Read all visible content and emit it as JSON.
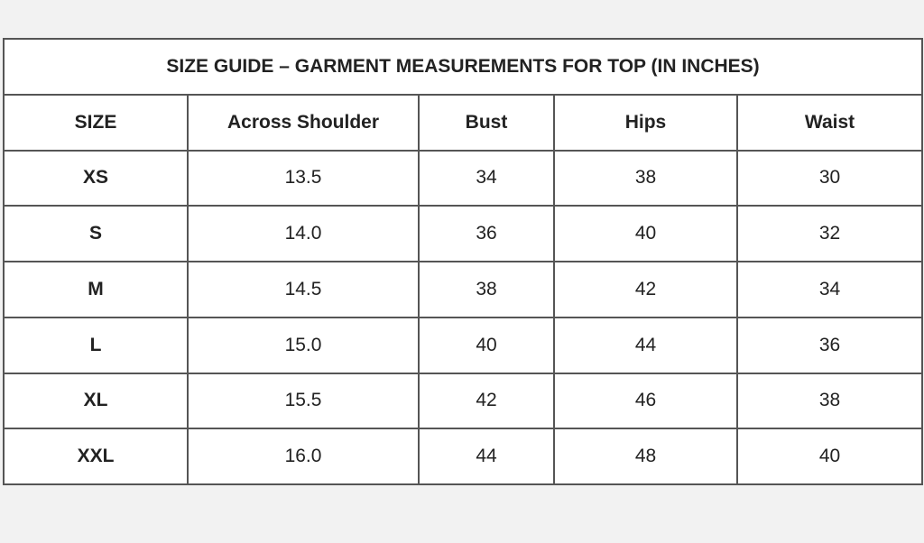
{
  "title": "SIZE GUIDE – GARMENT MEASUREMENTS FOR TOP (IN INCHES)",
  "columns": [
    "SIZE",
    "Across Shoulder",
    "Bust",
    "Hips",
    "Waist"
  ],
  "rows": [
    [
      "XS",
      "13.5",
      "34",
      "38",
      "30"
    ],
    [
      "S",
      "14.0",
      "36",
      "40",
      "32"
    ],
    [
      "M",
      "14.5",
      "38",
      "42",
      "34"
    ],
    [
      "L",
      "15.0",
      "40",
      "44",
      "36"
    ],
    [
      "XL",
      "15.5",
      "42",
      "46",
      "38"
    ],
    [
      "XXL",
      "16.0",
      "44",
      "48",
      "40"
    ]
  ]
}
